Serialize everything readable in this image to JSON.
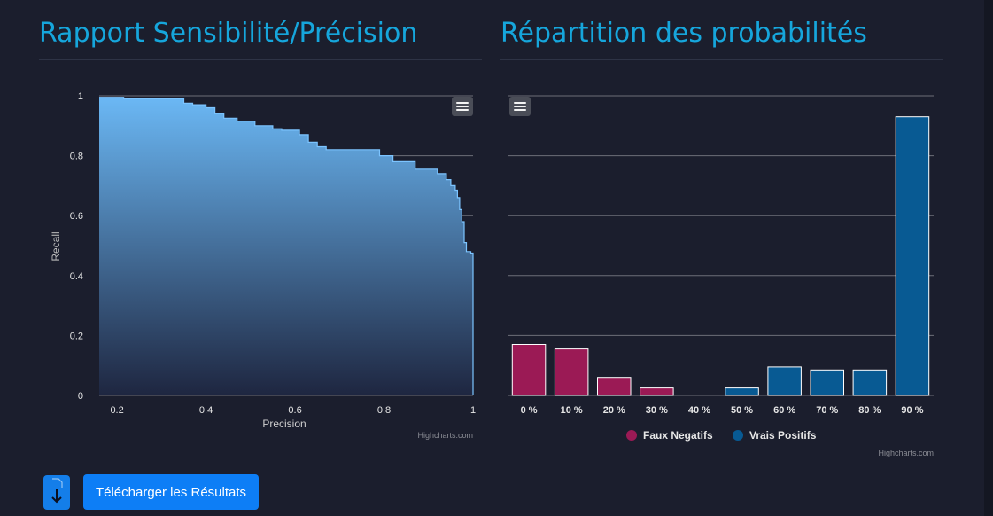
{
  "pr_section": {
    "title": "Rapport Sensibilité/Précision"
  },
  "prob_section": {
    "title": "Répartition des probabilités"
  },
  "actions": {
    "download_label": "Télécharger les Résultats",
    "download_icon": "download-icon"
  },
  "credits": {
    "text": "Highcharts.com"
  },
  "colors": {
    "area_top": "#6bb8f5",
    "area_bottom": "#1e2640",
    "line": "#7cc4ff",
    "faux": "#9b1a55",
    "vrais": "#085a93",
    "axis_text": "#e6e6e6",
    "grid": "#6d6f78"
  },
  "chart_data": [
    {
      "type": "area",
      "title": "",
      "xlabel": "Precision",
      "ylabel": "Recall",
      "xlim": [
        0.16,
        1.0
      ],
      "ylim": [
        0,
        1
      ],
      "x_ticks": [
        "0.2",
        "0.4",
        "0.6",
        "0.8",
        "1"
      ],
      "x_tick_values": [
        0.2,
        0.4,
        0.6,
        0.8,
        1.0
      ],
      "y_ticks": [
        "0",
        "0.2",
        "0.4",
        "0.6",
        "0.8",
        "1"
      ],
      "y_tick_values": [
        0,
        0.2,
        0.4,
        0.6,
        0.8,
        1.0
      ],
      "grid": true,
      "series": [
        {
          "x": [
            0.16,
            0.215,
            0.215,
            0.35,
            0.35,
            0.37,
            0.37,
            0.4,
            0.4,
            0.42,
            0.42,
            0.44,
            0.44,
            0.47,
            0.47,
            0.51,
            0.51,
            0.55,
            0.55,
            0.57,
            0.57,
            0.61,
            0.61,
            0.63,
            0.63,
            0.65,
            0.65,
            0.67,
            0.67,
            0.79,
            0.79,
            0.82,
            0.82,
            0.87,
            0.87,
            0.92,
            0.92,
            0.94,
            0.94,
            0.95,
            0.95,
            0.96,
            0.96,
            0.965,
            0.965,
            0.97,
            0.97,
            0.975,
            0.975,
            0.98,
            0.98,
            0.985,
            0.985,
            0.995,
            0.995,
            1.0,
            1.0
          ],
          "y": [
            0.995,
            0.995,
            0.99,
            0.99,
            0.975,
            0.975,
            0.97,
            0.97,
            0.96,
            0.96,
            0.94,
            0.94,
            0.925,
            0.925,
            0.915,
            0.915,
            0.9,
            0.9,
            0.89,
            0.89,
            0.885,
            0.885,
            0.87,
            0.87,
            0.845,
            0.845,
            0.83,
            0.83,
            0.82,
            0.82,
            0.8,
            0.8,
            0.78,
            0.78,
            0.755,
            0.755,
            0.74,
            0.74,
            0.72,
            0.72,
            0.7,
            0.7,
            0.685,
            0.685,
            0.66,
            0.66,
            0.62,
            0.62,
            0.58,
            0.58,
            0.51,
            0.51,
            0.48,
            0.48,
            0.475,
            0.475,
            0.0
          ]
        }
      ],
      "credit": "Highcharts.com"
    },
    {
      "type": "bar",
      "title": "",
      "categories": [
        "0 %",
        "10 %",
        "20 %",
        "30 %",
        "40 %",
        "50 %",
        "60 %",
        "70 %",
        "80 %",
        "90 %"
      ],
      "ylim": [
        0,
        100
      ],
      "grid": true,
      "legend_position": "bottom",
      "series": [
        {
          "name": "Faux Negatifs",
          "color": "#9b1a55",
          "values": [
            17,
            15.5,
            6,
            2.5,
            0,
            0,
            0,
            0,
            0,
            0
          ]
        },
        {
          "name": "Vrais Positifs",
          "color": "#085a93",
          "values": [
            0,
            0,
            0,
            0,
            0,
            2.5,
            9.5,
            8.5,
            8.5,
            93
          ]
        }
      ],
      "credit": "Highcharts.com"
    }
  ]
}
